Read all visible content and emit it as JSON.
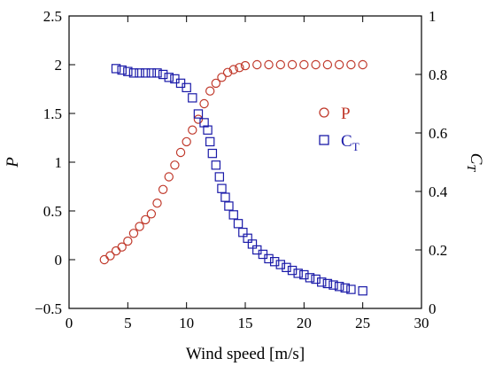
{
  "chart_data": {
    "type": "scatter",
    "title": "",
    "xlabel": "Wind speed [m/s]",
    "ylabel_left": "P",
    "ylabel_right": "C",
    "ylabel_right_sub": "T",
    "xlim": [
      0,
      30
    ],
    "ylim_left": [
      -0.5,
      2.5
    ],
    "ylim_right": [
      0,
      1
    ],
    "x_ticks": [
      0,
      5,
      10,
      15,
      20,
      25,
      30
    ],
    "y_left_ticks": [
      "−0.5",
      "0",
      "0.5",
      "1",
      "1.5",
      "2",
      "2.5"
    ],
    "y_left_tick_values": [
      -0.5,
      0,
      0.5,
      1,
      1.5,
      2,
      2.5
    ],
    "y_right_ticks": [
      "0",
      "0.2",
      "0.4",
      "0.6",
      "0.8",
      "1"
    ],
    "y_right_tick_values": [
      0,
      0.2,
      0.4,
      0.6,
      0.8,
      1
    ],
    "grid": false,
    "legend_position": "right-middle",
    "series": [
      {
        "name": "P",
        "axis": "left",
        "marker": "circle",
        "color": "#c0392b",
        "points": [
          [
            3.0,
            0.0
          ],
          [
            3.5,
            0.04
          ],
          [
            4.0,
            0.09
          ],
          [
            4.5,
            0.13
          ],
          [
            5.0,
            0.19
          ],
          [
            5.5,
            0.27
          ],
          [
            6.0,
            0.34
          ],
          [
            6.5,
            0.41
          ],
          [
            7.0,
            0.47
          ],
          [
            7.5,
            0.58
          ],
          [
            8.0,
            0.72
          ],
          [
            8.5,
            0.85
          ],
          [
            9.0,
            0.97
          ],
          [
            9.5,
            1.1
          ],
          [
            10.0,
            1.21
          ],
          [
            10.5,
            1.33
          ],
          [
            11.0,
            1.44
          ],
          [
            11.5,
            1.6
          ],
          [
            12.0,
            1.73
          ],
          [
            12.5,
            1.81
          ],
          [
            13.0,
            1.87
          ],
          [
            13.5,
            1.92
          ],
          [
            14.0,
            1.95
          ],
          [
            14.5,
            1.97
          ],
          [
            15.0,
            1.99
          ],
          [
            16.0,
            2.0
          ],
          [
            17.0,
            2.0
          ],
          [
            18.0,
            2.0
          ],
          [
            19.0,
            2.0
          ],
          [
            20.0,
            2.0
          ],
          [
            21.0,
            2.0
          ],
          [
            22.0,
            2.0
          ],
          [
            23.0,
            2.0
          ],
          [
            24.0,
            2.0
          ],
          [
            25.0,
            2.0
          ]
        ]
      },
      {
        "name": "CT",
        "name_main": "C",
        "name_sub": "T",
        "axis": "right",
        "marker": "square",
        "color": "#1a1aa8",
        "points": [
          [
            4.0,
            0.82
          ],
          [
            4.5,
            0.815
          ],
          [
            5.0,
            0.81
          ],
          [
            5.5,
            0.805
          ],
          [
            6.0,
            0.805
          ],
          [
            6.5,
            0.805
          ],
          [
            7.0,
            0.805
          ],
          [
            7.5,
            0.805
          ],
          [
            8.0,
            0.8
          ],
          [
            8.5,
            0.79
          ],
          [
            9.0,
            0.785
          ],
          [
            9.5,
            0.77
          ],
          [
            10.0,
            0.755
          ],
          [
            10.5,
            0.72
          ],
          [
            11.0,
            0.665
          ],
          [
            11.5,
            0.635
          ],
          [
            11.8,
            0.61
          ],
          [
            12.0,
            0.57
          ],
          [
            12.2,
            0.53
          ],
          [
            12.5,
            0.49
          ],
          [
            12.8,
            0.45
          ],
          [
            13.0,
            0.41
          ],
          [
            13.3,
            0.38
          ],
          [
            13.6,
            0.35
          ],
          [
            14.0,
            0.32
          ],
          [
            14.4,
            0.29
          ],
          [
            14.8,
            0.26
          ],
          [
            15.2,
            0.24
          ],
          [
            15.6,
            0.22
          ],
          [
            16.0,
            0.2
          ],
          [
            16.5,
            0.185
          ],
          [
            17.0,
            0.17
          ],
          [
            17.5,
            0.16
          ],
          [
            18.0,
            0.15
          ],
          [
            18.5,
            0.14
          ],
          [
            19.0,
            0.13
          ],
          [
            19.5,
            0.12
          ],
          [
            20.0,
            0.115
          ],
          [
            20.5,
            0.105
          ],
          [
            21.0,
            0.1
          ],
          [
            21.5,
            0.09
          ],
          [
            22.0,
            0.085
          ],
          [
            22.5,
            0.08
          ],
          [
            23.0,
            0.075
          ],
          [
            23.5,
            0.07
          ],
          [
            24.0,
            0.065
          ],
          [
            25.0,
            0.06
          ]
        ]
      }
    ]
  }
}
